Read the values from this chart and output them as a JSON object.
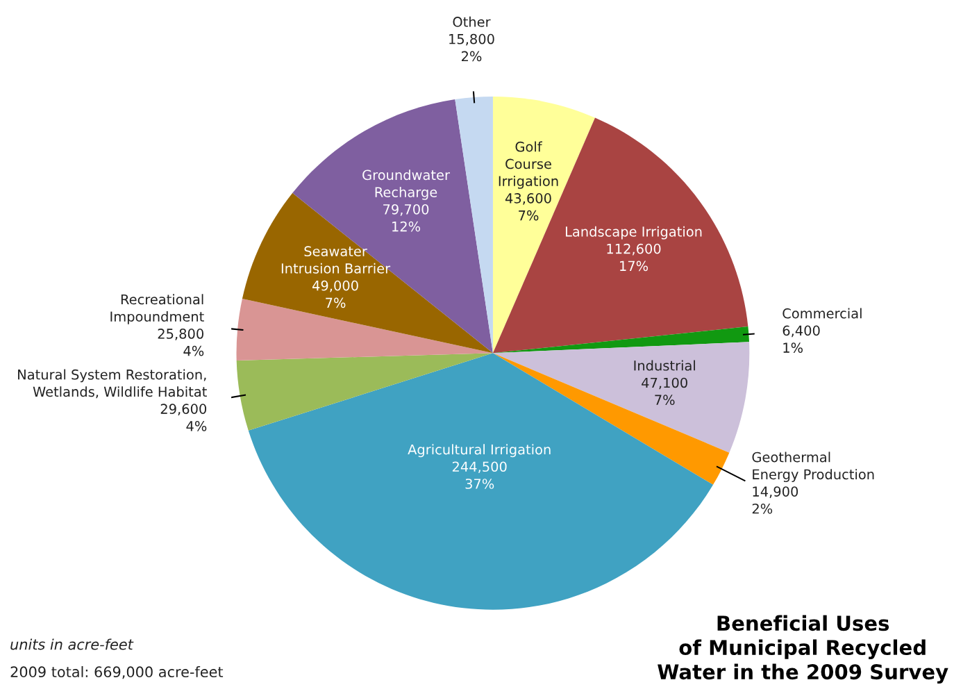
{
  "chart_data": {
    "type": "pie",
    "title": "Beneficial Uses\nof Municipal Recycled\nWater in the 2009 Survey",
    "categories": [
      "Golf\nCourse\nIrrigation",
      "Landscape Irrigation",
      "Commercial",
      "Industrial",
      "Geothermal\nEnergy Production",
      "Agricultural Irrigation",
      "Natural System Restoration,\nWetlands, Wildlife Habitat",
      "Recreational\nImpoundment",
      "Seawater\nIntrusion Barrier",
      "Groundwater\nRecharge",
      "Other"
    ],
    "values": [
      43600,
      112600,
      6400,
      47100,
      14900,
      244500,
      29600,
      25800,
      49000,
      79700,
      15800
    ],
    "value_labels": [
      "43,600\n7%",
      "112,600\n17%",
      "6,400\n1%",
      "47,100\n7%",
      "14,900\n2%",
      "244,500\n37%",
      "29,600\n4%",
      "25,800\n4%",
      "49,000\n7%",
      "79,700\n12%",
      "15,800\n2%"
    ],
    "colors": [
      "#ffff99",
      "#a94442",
      "#119911",
      "#ccc0da",
      "#ff9900",
      "#40a2c2",
      "#9bbb59",
      "#d99594",
      "#996600",
      "#7f5fa0",
      "#c5d9f1"
    ],
    "annotations": [
      "units in acre-feet",
      "2009 total: 669,000 acre-feet"
    ]
  }
}
